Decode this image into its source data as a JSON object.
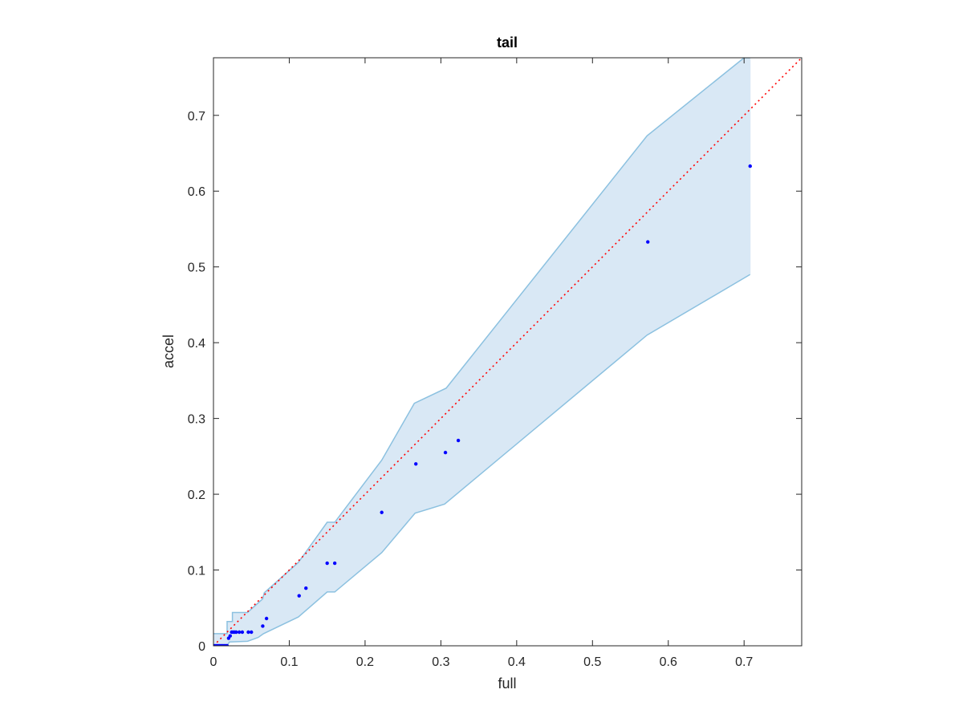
{
  "chart_data": {
    "type": "scatter",
    "title": "tail",
    "xlabel": "full",
    "ylabel": "accel",
    "xlim": [
      0,
      0.776
    ],
    "ylim": [
      0,
      0.776
    ],
    "xticks": [
      0,
      0.1,
      0.2,
      0.3,
      0.4,
      0.5,
      0.6,
      0.7
    ],
    "yticks": [
      0,
      0.1,
      0.2,
      0.3,
      0.4,
      0.5,
      0.6,
      0.7
    ],
    "xtick_labels": [
      "0",
      "0.1",
      "0.2",
      "0.3",
      "0.4",
      "0.5",
      "0.6",
      "0.7"
    ],
    "ytick_labels": [
      "0",
      "0.1",
      "0.2",
      "0.3",
      "0.4",
      "0.5",
      "0.6",
      "0.7"
    ],
    "grid": false,
    "colors": {
      "points": "#0000ff",
      "band_fill": "#d9e8f5",
      "band_edge": "#8cc1e0",
      "reference_line": "#ff0000",
      "axes": "#262626"
    },
    "reference_line": {
      "style": "dotted",
      "x": [
        0,
        0.776
      ],
      "y": [
        0,
        0.776
      ]
    },
    "points": {
      "x": [
        0,
        0.002,
        0.004,
        0.006,
        0.008,
        0.01,
        0.012,
        0.014,
        0.016,
        0.018,
        0.02,
        0.022,
        0.024,
        0.026,
        0.028,
        0.03,
        0.034,
        0.038,
        0.046,
        0.05,
        0.065,
        0.07,
        0.113,
        0.122,
        0.15,
        0.16,
        0.222,
        0.267,
        0.306,
        0.323,
        0.573,
        0.708
      ],
      "y": [
        0,
        0,
        0,
        0,
        0,
        0,
        0,
        0,
        0,
        0,
        0.01,
        0.013,
        0.018,
        0.018,
        0.018,
        0.018,
        0.018,
        0.018,
        0.018,
        0.018,
        0.026,
        0.036,
        0.066,
        0.076,
        0.109,
        0.109,
        0.176,
        0.24,
        0.255,
        0.271,
        0.533,
        0.633
      ]
    },
    "band_upper": {
      "x": [
        0,
        0.018,
        0.018,
        0.025,
        0.025,
        0.045,
        0.065,
        0.067,
        0.112,
        0.15,
        0.16,
        0.222,
        0.265,
        0.307,
        0.572,
        0.7,
        0.708
      ],
      "y": [
        0.016,
        0.016,
        0.032,
        0.032,
        0.044,
        0.044,
        0.062,
        0.07,
        0.11,
        0.163,
        0.163,
        0.245,
        0.32,
        0.34,
        0.673,
        0.776,
        0.776
      ]
    },
    "band_lower": {
      "x": [
        0,
        0.018,
        0.021,
        0.045,
        0.059,
        0.066,
        0.112,
        0.15,
        0.16,
        0.222,
        0.266,
        0.305,
        0.572,
        0.708
      ],
      "y": [
        0,
        0,
        0.005,
        0.006,
        0.011,
        0.016,
        0.038,
        0.071,
        0.071,
        0.123,
        0.175,
        0.187,
        0.41,
        0.49
      ]
    }
  }
}
